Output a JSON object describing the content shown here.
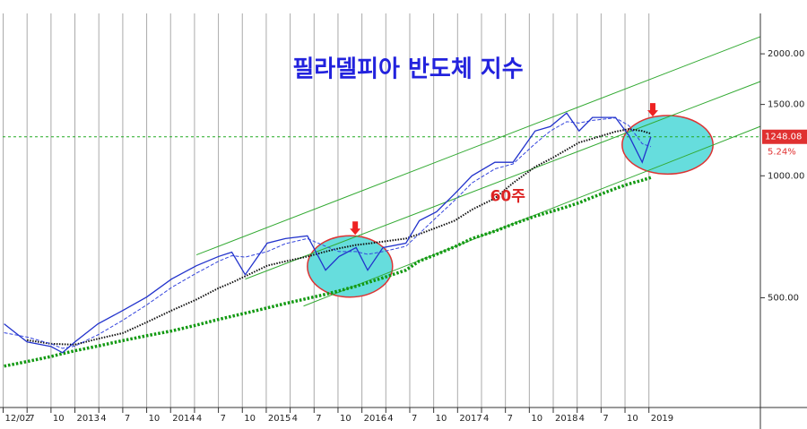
{
  "chart_data": {
    "type": "line",
    "title": "필라델피아 반도체 지수",
    "log_scale": true,
    "grid": true,
    "xlim": [
      2012.245,
      2020.165
    ],
    "ylim": [
      268,
      2516
    ],
    "xticks": [
      {
        "value": 2012.25,
        "label": "12/02"
      },
      {
        "value": 2012.5,
        "label": "7"
      },
      {
        "value": 2012.75,
        "label": "10"
      },
      2013,
      {
        "value": 2013.25,
        "label": "4"
      },
      {
        "value": 2013.5,
        "label": "7"
      },
      {
        "value": 2013.75,
        "label": "10"
      },
      2014,
      {
        "value": 2014.25,
        "label": "4"
      },
      {
        "value": 2014.5,
        "label": "7"
      },
      {
        "value": 2014.75,
        "label": "10"
      },
      2015,
      {
        "value": 2015.25,
        "label": "4"
      },
      {
        "value": 2015.5,
        "label": "7"
      },
      {
        "value": 2015.75,
        "label": "10"
      },
      2016,
      {
        "value": 2016.25,
        "label": "4"
      },
      {
        "value": 2016.5,
        "label": "7"
      },
      {
        "value": 2016.75,
        "label": "10"
      },
      2017,
      {
        "value": 2017.25,
        "label": "4"
      },
      {
        "value": 2017.5,
        "label": "7"
      },
      {
        "value": 2017.75,
        "label": "10"
      },
      2018,
      {
        "value": 2018.25,
        "label": "4"
      },
      {
        "value": 2018.5,
        "label": "7"
      },
      {
        "value": 2018.75,
        "label": "10"
      },
      2019
    ],
    "yticks": [
      {
        "value": 500,
        "label": "500.00"
      },
      {
        "value": 1000,
        "label": "1000.00"
      },
      {
        "value": 1500,
        "label": "1500.00"
      },
      {
        "value": 2000,
        "label": "2000.00"
      }
    ],
    "x": [
      2012.26,
      2012.5,
      2012.75,
      2012.87,
      2013.0,
      2013.24,
      2013.5,
      2013.75,
      2014.01,
      2014.27,
      2014.5,
      2014.64,
      2014.78,
      2015.01,
      2015.2,
      2015.43,
      2015.62,
      2015.76,
      2015.94,
      2016.06,
      2016.22,
      2016.46,
      2016.6,
      2016.78,
      2016.97,
      2017.15,
      2017.39,
      2017.58,
      2017.81,
      2017.97,
      2018.14,
      2018.27,
      2018.41,
      2018.65,
      2018.79,
      2018.93,
      2019.02
    ],
    "series": [
      {
        "color": "#2233cc",
        "style": "solid",
        "values": [
          431,
          389,
          379,
          366,
          389,
          431,
          465,
          502,
          556,
          600,
          632,
          648,
          570,
          682,
          700,
          711,
          585,
          632,
          665,
          585,
          665,
          682,
          775,
          815,
          903,
          1000,
          1080,
          1080,
          1290,
          1323,
          1429,
          1290,
          1393,
          1393,
          1258,
          1080,
          1248.08
        ]
      },
      {
        "color": "#3344dd",
        "style": "dashed",
        "values": [
          410,
          400,
          385,
          375,
          380,
          405,
          440,
          480,
          530,
          575,
          615,
          635,
          630,
          650,
          680,
          700,
          670,
          650,
          650,
          640,
          650,
          670,
          720,
          790,
          870,
          960,
          1040,
          1070,
          1200,
          1290,
          1360,
          1350,
          1370,
          1390,
          1330,
          1200,
          1180
        ]
      },
      {
        "color": "#111111",
        "style": "dotted",
        "values": [
          null,
          393,
          385,
          384,
          383,
          396,
          409,
          435,
          465,
          495,
          528,
          545,
          565,
          600,
          615,
          632,
          650,
          662,
          675,
          680,
          688,
          700,
          718,
          745,
          775,
          825,
          880,
          960,
          1052,
          1100,
          1160,
          1208,
          1235,
          1285,
          1304,
          1290,
          1271
        ]
      },
      {
        "color": "#119911",
        "style": "thickdotted",
        "values": [
          339,
          348,
          358,
          364,
          370,
          380,
          392,
          403,
          414,
          428,
          442,
          450,
          458,
          472,
          484,
          498,
          510,
          520,
          534,
          545,
          560,
          585,
          616,
          640,
          668,
          700,
          730,
          760,
          795,
          815,
          838,
          858,
          885,
          930,
          955,
          975,
          990
        ]
      }
    ],
    "trendlines": [
      {
        "x": [
          2014.27,
          2020.165
        ],
        "y": [
          638,
          2205
        ],
        "color": "#33aa33"
      },
      {
        "x": [
          2014.78,
          2020.165
        ],
        "y": [
          556,
          1709
        ],
        "color": "#33aa33"
      },
      {
        "x": [
          2015.39,
          2020.165
        ],
        "y": [
          477,
          1324
        ],
        "color": "#33aa33"
      }
    ],
    "highlights": [
      {
        "x": [
          2015.43,
          2016.32
        ],
        "y": [
          502,
          711
        ],
        "color": "#66dddd",
        "edge": "#dd3333"
      },
      {
        "x": [
          2018.72,
          2019.67
        ],
        "y": [
          1010,
          1408
        ],
        "color": "#66dddd",
        "edge": "#dd3333"
      }
    ],
    "arrows": [
      {
        "x": 2015.93,
        "y": 711,
        "color": "#ee2222"
      },
      {
        "x": 2019.04,
        "y": 1393,
        "color": "#ee2222"
      }
    ],
    "annotation": {
      "text": "60주",
      "x": 2017.34,
      "y": 889,
      "color": "#dd2222"
    },
    "reference_line": {
      "value": 1248.08,
      "color": "#22aa22"
    },
    "change": {
      "value": 5.24,
      "label": "5.24%"
    }
  }
}
